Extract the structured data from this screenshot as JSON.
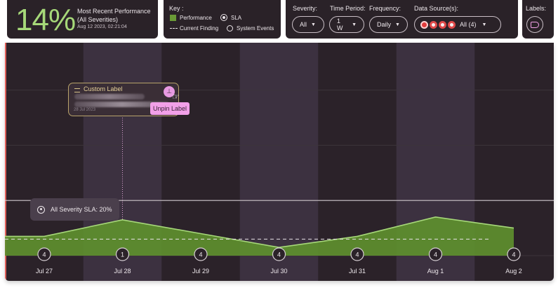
{
  "header": {
    "big_percent": "14%",
    "perf_title_line1": "Most Recent Performance",
    "perf_title_line2": "(All Severities)",
    "perf_timestamp": "Aug 12 2023, 02:21:04",
    "key_title": "Key :",
    "key_performance": "Performance",
    "key_sla": "SLA",
    "key_current_finding": "Current Finding",
    "key_system_events": "System Events",
    "severity_label": "Severity:",
    "severity_value": "All",
    "time_period_label": "Time Period:",
    "time_period_value": "1 W",
    "frequency_label": "Frequency:",
    "frequency_value": "Daily",
    "data_sources_label": "Data Source(s):",
    "data_sources_value": "All (4)",
    "labels_label": "Labels:"
  },
  "colors": {
    "accent_green": "#a6d879",
    "performance_fill": "#5e8f2e",
    "label_pink": "#f2a0e8",
    "panel_bg": "#2b2229",
    "band_bg": "#3c3140",
    "red_edge": "#e0605a"
  },
  "custom_label": {
    "title": "Custom Label",
    "date": "28 Jul 2023",
    "pin_tooltip": "Unpin Label"
  },
  "sla_badge": "All Severity SLA: 20%",
  "chart_data": {
    "type": "area",
    "categories": [
      "Jul 27",
      "Jul 28",
      "Jul 29",
      "Jul 30",
      "Jul 31",
      "Aug 1",
      "Aug 2"
    ],
    "series": [
      {
        "name": "Performance",
        "values": [
          7,
          13,
          8,
          3,
          7,
          14,
          10
        ]
      }
    ],
    "sla": 20,
    "current_finding": 6,
    "event_counts": [
      4,
      1,
      4,
      4,
      4,
      4,
      4
    ],
    "ylim": [
      0,
      100
    ],
    "grid": true
  }
}
